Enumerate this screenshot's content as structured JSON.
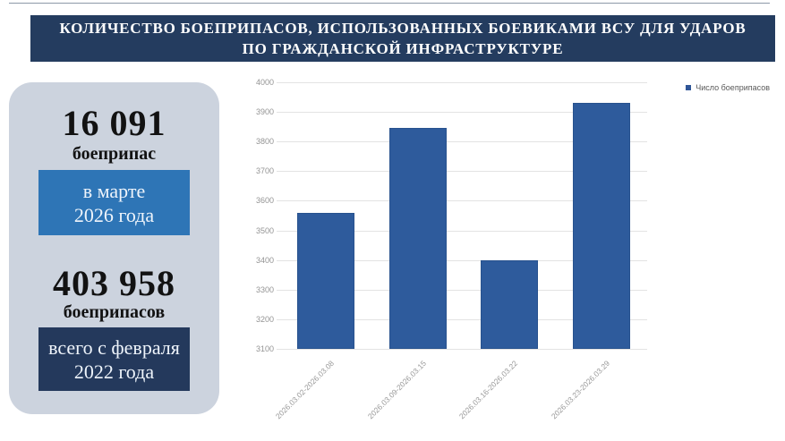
{
  "header": {
    "line1": "КОЛИЧЕСТВО БОЕПРИПАСОВ, ИСПОЛЬЗОВАННЫХ БОЕВИКАМИ ВСУ ДЛЯ УДАРОВ",
    "line2": "ПО ГРАЖДАНСКОЙ ИНФРАСТРУКТУРЕ",
    "bg": "#243c5f",
    "text_color": "#ffffff"
  },
  "stats_panel": {
    "bg": "#ccd3de",
    "monthly": {
      "value": "16 091",
      "unit": "боеприпас",
      "period": "в марте\n2026 года",
      "period_bg": "#2e75b6"
    },
    "total": {
      "value": "403 958",
      "unit": "боеприпасов",
      "period": "всего с февраля\n2022 года",
      "period_bg": "#24395c"
    }
  },
  "chart_data": {
    "type": "bar",
    "title": "",
    "categories": [
      "2026.03.02-2026.03.08",
      "2026.03.09-2026.03.15",
      "2026.03.16-2026.03.22",
      "2026.03.23-2026.03.29"
    ],
    "series": [
      {
        "name": "Число боеприпасов",
        "values": [
          3560,
          3845,
          3400,
          3930
        ]
      }
    ],
    "ylim": [
      3100,
      4000
    ],
    "yticks": [
      3100,
      3200,
      3300,
      3400,
      3500,
      3600,
      3700,
      3800,
      3900,
      4000
    ],
    "grid": true,
    "legend_position": "top-right",
    "bar_color": "#2e5b9c",
    "legend_swatch_color": "#2f5597",
    "xlabel": "",
    "ylabel": ""
  }
}
